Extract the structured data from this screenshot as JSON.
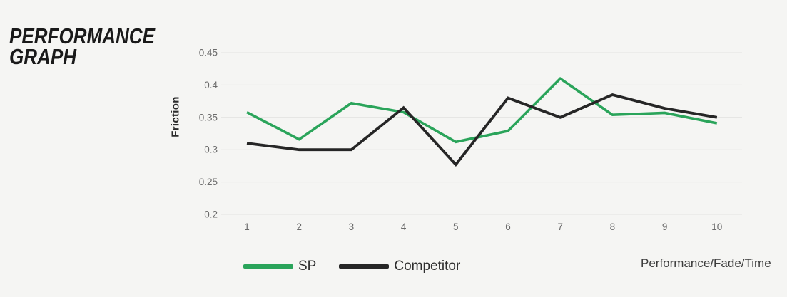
{
  "page": {
    "background": "#f5f5f3",
    "gridline_color": "#e2e2e0",
    "tick_color": "#6b6b6b"
  },
  "header": {
    "title_line1": "PERFORMANCE",
    "title_line2": "GRAPH"
  },
  "chart_data": {
    "type": "line",
    "title": "PERFORMANCE GRAPH",
    "ylabel": "Friction",
    "xlabel": "Performance/Fade/Time",
    "x": [
      1,
      2,
      3,
      4,
      5,
      6,
      7,
      8,
      9,
      10
    ],
    "xtick_labels": [
      "1",
      "2",
      "3",
      "4",
      "5",
      "6",
      "7",
      "8",
      "9",
      "10"
    ],
    "series": [
      {
        "name": "SP",
        "color": "#2aa45a",
        "values": [
          0.358,
          0.316,
          0.372,
          0.358,
          0.312,
          0.329,
          0.41,
          0.354,
          0.357,
          0.341
        ]
      },
      {
        "name": "Competitor",
        "color": "#262626",
        "values": [
          0.31,
          0.3,
          0.3,
          0.365,
          0.277,
          0.38,
          0.35,
          0.385,
          0.364,
          0.35
        ]
      }
    ],
    "ylim": [
      0.2,
      0.45
    ],
    "yticks": [
      0.45,
      0.4,
      0.35,
      0.3,
      0.25,
      0.2
    ],
    "ytick_labels": [
      "0.45",
      "0.4",
      "0.35",
      "0.3",
      "0.25",
      "0.2"
    ],
    "grid": "horizontal",
    "legend_position": "bottom"
  }
}
